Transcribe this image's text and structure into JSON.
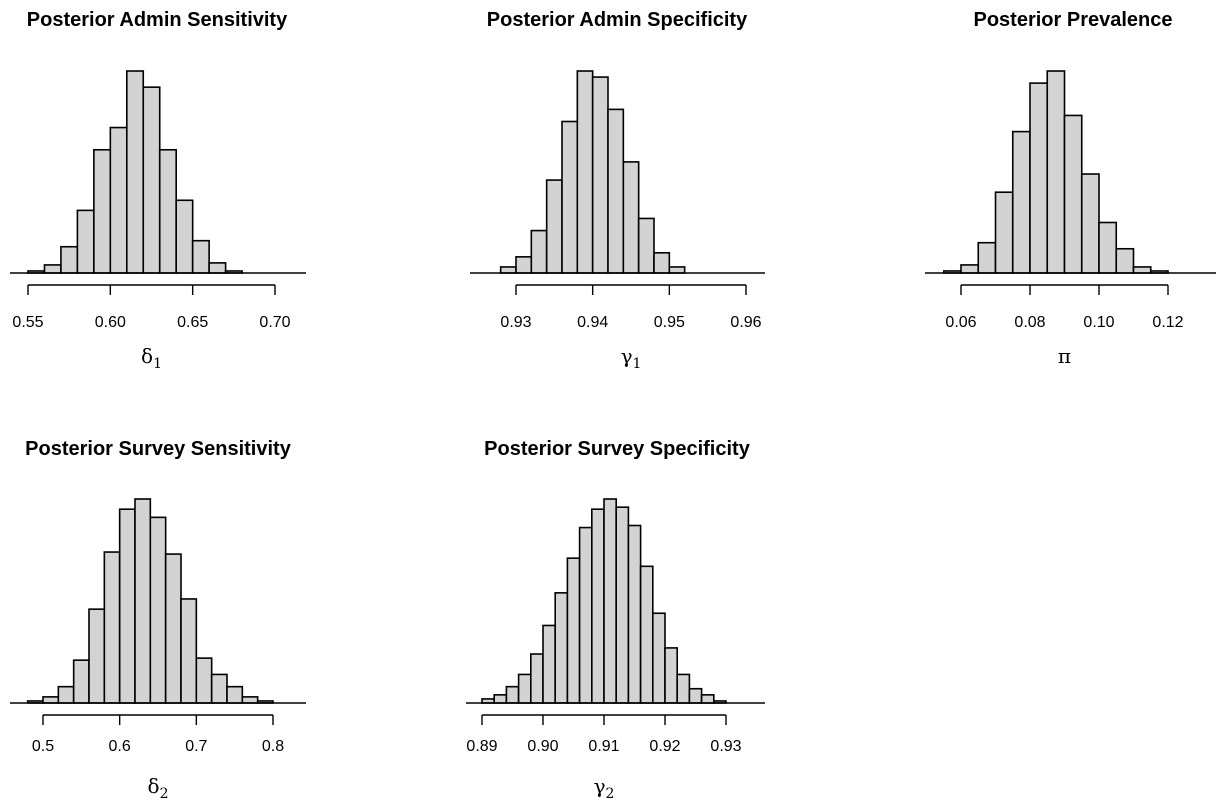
{
  "chart_data": [
    {
      "type": "bar",
      "title": "Posterior Admin Sensitivity",
      "xlabel": "δ",
      "xlabel_sub": "1",
      "xlim": [
        0.55,
        0.7
      ],
      "ticks": [
        0.55,
        0.6,
        0.65,
        0.7
      ],
      "tick_labels": [
        "0.55",
        "0.60",
        "0.65",
        "0.70"
      ],
      "bin_edges": [
        0.54,
        0.55,
        0.56,
        0.57,
        0.58,
        0.59,
        0.6,
        0.61,
        0.62,
        0.63,
        0.64,
        0.65,
        0.66,
        0.67,
        0.68,
        0.69,
        0.7
      ],
      "values": [
        0,
        1,
        4,
        13,
        31,
        61,
        72,
        100,
        92,
        61,
        36,
        16,
        5,
        1,
        0,
        0
      ]
    },
    {
      "type": "bar",
      "title": "Posterior Admin Specificity",
      "xlabel": "γ",
      "xlabel_sub": "1",
      "xlim": [
        0.93,
        0.96
      ],
      "ticks": [
        0.93,
        0.94,
        0.95,
        0.96
      ],
      "tick_labels": [
        "0.93",
        "0.94",
        "0.95",
        "0.96"
      ],
      "bin_edges": [
        0.926,
        0.928,
        0.93,
        0.932,
        0.934,
        0.936,
        0.938,
        0.94,
        0.942,
        0.944,
        0.946,
        0.948,
        0.95,
        0.952,
        0.954,
        0.956,
        0.958
      ],
      "values": [
        0,
        3,
        8,
        21,
        46,
        75,
        100,
        97,
        81,
        55,
        27,
        10,
        3,
        0,
        0,
        0
      ]
    },
    {
      "type": "bar",
      "title": "Posterior Prevalence",
      "xlabel": "π",
      "xlabel_sub": "",
      "xlim": [
        0.06,
        0.12
      ],
      "ticks": [
        0.06,
        0.08,
        0.1,
        0.12
      ],
      "tick_labels": [
        "0.06",
        "0.08",
        "0.10",
        "0.12"
      ],
      "bin_edges": [
        0.055,
        0.06,
        0.065,
        0.07,
        0.075,
        0.08,
        0.085,
        0.09,
        0.095,
        0.1,
        0.105,
        0.11,
        0.115,
        0.12
      ],
      "values": [
        1,
        4,
        15,
        40,
        70,
        94,
        100,
        78,
        49,
        25,
        12,
        3,
        1
      ]
    },
    {
      "type": "bar",
      "title": "Posterior Survey Sensitivity",
      "xlabel": "δ",
      "xlabel_sub": "2",
      "xlim": [
        0.5,
        0.8
      ],
      "ticks": [
        0.5,
        0.6,
        0.7,
        0.8
      ],
      "tick_labels": [
        "0.5",
        "0.6",
        "0.7",
        "0.8"
      ],
      "bin_edges": [
        0.46,
        0.48,
        0.5,
        0.52,
        0.54,
        0.56,
        0.58,
        0.6,
        0.62,
        0.64,
        0.66,
        0.68,
        0.7,
        0.72,
        0.74,
        0.76,
        0.78,
        0.8,
        0.82
      ],
      "values": [
        0,
        1,
        3,
        8,
        21,
        46,
        74,
        95,
        100,
        91,
        73,
        51,
        22,
        14,
        8,
        3,
        1,
        0
      ]
    },
    {
      "type": "bar",
      "title": "Posterior Survey Specificity",
      "xlabel": "γ",
      "xlabel_sub": "2",
      "xlim": [
        0.89,
        0.93
      ],
      "ticks": [
        0.89,
        0.9,
        0.91,
        0.92,
        0.93
      ],
      "tick_labels": [
        "0.89",
        "0.90",
        "0.91",
        "0.92",
        "0.93"
      ],
      "bin_edges": [
        0.89,
        0.892,
        0.894,
        0.896,
        0.898,
        0.9,
        0.902,
        0.904,
        0.906,
        0.908,
        0.91,
        0.912,
        0.914,
        0.916,
        0.918,
        0.92,
        0.922,
        0.924,
        0.926,
        0.928,
        0.93
      ],
      "values": [
        2,
        4,
        8,
        14,
        24,
        38,
        54,
        71,
        86,
        95,
        100,
        96,
        87,
        67,
        44,
        27,
        14,
        7,
        4,
        1
      ]
    }
  ]
}
